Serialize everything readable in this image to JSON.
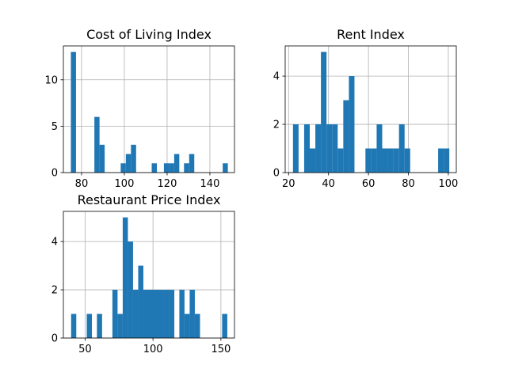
{
  "chart_data": [
    {
      "type": "bar",
      "subtype": "histogram",
      "title": "Cost of Living Index",
      "xlabel": "",
      "ylabel": "",
      "grid": true,
      "xlim": [
        71.5,
        151.5
      ],
      "ylim": [
        0,
        13.65
      ],
      "xticks": [
        80,
        100,
        120,
        140
      ],
      "yticks": [
        0,
        5,
        10
      ],
      "bins": [
        {
          "start": 75.0,
          "end": 77.4,
          "count": 13
        },
        {
          "start": 86.0,
          "end": 88.4,
          "count": 6
        },
        {
          "start": 88.4,
          "end": 90.8,
          "count": 3
        },
        {
          "start": 98.3,
          "end": 100.7,
          "count": 1
        },
        {
          "start": 100.7,
          "end": 103.1,
          "count": 2
        },
        {
          "start": 103.1,
          "end": 105.5,
          "count": 3
        },
        {
          "start": 112.8,
          "end": 115.2,
          "count": 1
        },
        {
          "start": 118.5,
          "end": 120.9,
          "count": 1
        },
        {
          "start": 120.9,
          "end": 123.3,
          "count": 1
        },
        {
          "start": 123.3,
          "end": 125.7,
          "count": 2
        },
        {
          "start": 127.9,
          "end": 130.3,
          "count": 1
        },
        {
          "start": 130.3,
          "end": 132.7,
          "count": 2
        },
        {
          "start": 146.0,
          "end": 148.4,
          "count": 1
        }
      ]
    },
    {
      "type": "bar",
      "subtype": "histogram",
      "title": "Rent Index",
      "xlabel": "",
      "ylabel": "",
      "grid": true,
      "xlim": [
        18.3,
        104.0
      ],
      "ylim": [
        0,
        5.25
      ],
      "xticks": [
        20,
        40,
        60,
        80,
        100
      ],
      "yticks": [
        0,
        2,
        4
      ],
      "bins": [
        {
          "start": 22.2,
          "end": 25.0,
          "count": 2
        },
        {
          "start": 27.8,
          "end": 30.6,
          "count": 2
        },
        {
          "start": 30.6,
          "end": 33.4,
          "count": 1
        },
        {
          "start": 33.4,
          "end": 36.2,
          "count": 2
        },
        {
          "start": 36.2,
          "end": 39.0,
          "count": 5
        },
        {
          "start": 39.0,
          "end": 41.8,
          "count": 2
        },
        {
          "start": 41.8,
          "end": 44.6,
          "count": 2
        },
        {
          "start": 44.6,
          "end": 47.4,
          "count": 1
        },
        {
          "start": 47.4,
          "end": 50.2,
          "count": 3
        },
        {
          "start": 50.2,
          "end": 53.0,
          "count": 4
        },
        {
          "start": 58.5,
          "end": 61.3,
          "count": 1
        },
        {
          "start": 61.3,
          "end": 64.1,
          "count": 1
        },
        {
          "start": 64.1,
          "end": 66.9,
          "count": 2
        },
        {
          "start": 66.9,
          "end": 69.7,
          "count": 1
        },
        {
          "start": 69.7,
          "end": 72.5,
          "count": 1
        },
        {
          "start": 72.5,
          "end": 75.3,
          "count": 1
        },
        {
          "start": 75.3,
          "end": 78.1,
          "count": 2
        },
        {
          "start": 78.1,
          "end": 80.9,
          "count": 1
        },
        {
          "start": 94.9,
          "end": 97.7,
          "count": 1
        },
        {
          "start": 97.7,
          "end": 100.5,
          "count": 1
        }
      ]
    },
    {
      "type": "bar",
      "subtype": "histogram",
      "title": "Restaurant Price Index",
      "xlabel": "",
      "ylabel": "",
      "grid": true,
      "xlim": [
        34.0,
        160.0
      ],
      "ylim": [
        0,
        5.25
      ],
      "xticks": [
        50,
        100,
        150
      ],
      "yticks": [
        0,
        2,
        4
      ],
      "bins": [
        {
          "start": 39.7,
          "end": 43.5,
          "count": 1
        },
        {
          "start": 51.2,
          "end": 55.0,
          "count": 1
        },
        {
          "start": 58.7,
          "end": 62.5,
          "count": 1
        },
        {
          "start": 70.1,
          "end": 73.9,
          "count": 2
        },
        {
          "start": 73.9,
          "end": 77.7,
          "count": 1
        },
        {
          "start": 77.7,
          "end": 81.5,
          "count": 5
        },
        {
          "start": 81.5,
          "end": 85.3,
          "count": 4
        },
        {
          "start": 85.3,
          "end": 89.1,
          "count": 2
        },
        {
          "start": 89.1,
          "end": 92.9,
          "count": 3
        },
        {
          "start": 92.9,
          "end": 96.7,
          "count": 2
        },
        {
          "start": 96.7,
          "end": 100.5,
          "count": 2
        },
        {
          "start": 100.5,
          "end": 104.3,
          "count": 2
        },
        {
          "start": 104.3,
          "end": 108.1,
          "count": 2
        },
        {
          "start": 108.1,
          "end": 111.9,
          "count": 2
        },
        {
          "start": 111.9,
          "end": 115.7,
          "count": 2
        },
        {
          "start": 119.4,
          "end": 123.2,
          "count": 2
        },
        {
          "start": 123.2,
          "end": 127.0,
          "count": 1
        },
        {
          "start": 127.0,
          "end": 130.8,
          "count": 2
        },
        {
          "start": 130.8,
          "end": 134.6,
          "count": 1
        },
        {
          "start": 150.9,
          "end": 154.7,
          "count": 1
        }
      ]
    }
  ]
}
